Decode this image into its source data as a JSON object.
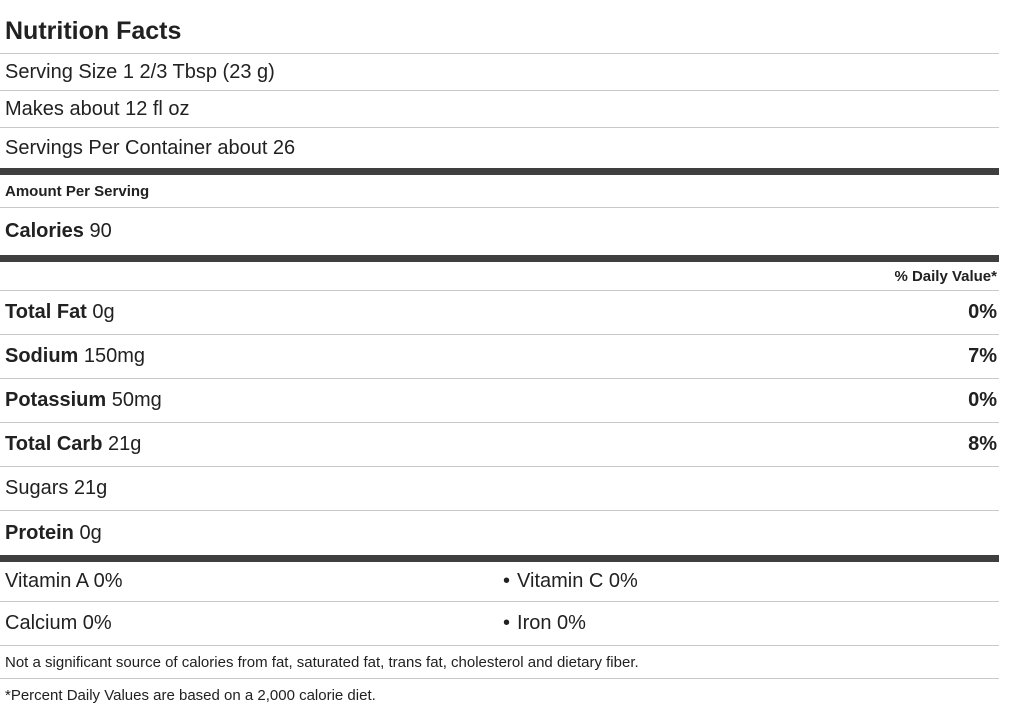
{
  "label": {
    "title": "Nutrition Facts",
    "serving_rows": [
      "Serving Size 1 2/3 Tbsp (23 g)",
      "Makes about 12 fl oz",
      "Servings Per Container about 26"
    ],
    "amount_per_serving": "Amount Per Serving",
    "calories": {
      "name": "Calories",
      "value": " 90"
    },
    "daily_value_header": "% Daily Value*",
    "nutrients": [
      {
        "name": "Total Fat",
        "amount": " 0g",
        "daily_value": "0%"
      },
      {
        "name": "Sodium",
        "amount": " 150mg",
        "daily_value": "7%"
      },
      {
        "name": "Potassium",
        "amount": " 50mg",
        "daily_value": "0%"
      },
      {
        "name": "Total Carb",
        "amount": " 21g",
        "daily_value": "8%"
      },
      {
        "name": "Sugars",
        "amount": " 21g",
        "daily_value": ""
      },
      {
        "name": "Protein",
        "amount": " 0g",
        "daily_value": ""
      }
    ],
    "bullet": "•",
    "micronutrient_rows": [
      {
        "left": "Vitamin A 0%",
        "right": "Vitamin C 0%"
      },
      {
        "left": "Calcium 0%",
        "right": "Iron 0%"
      }
    ],
    "note": "Not a significant source of calories from fat, saturated fat, trans fat, cholesterol and dietary fiber.",
    "footnote": "*Percent Daily Values are based on a 2,000 calorie diet.",
    "colors": {
      "text": "#212121",
      "thin_rule": "#c9c9c9",
      "thick_bar": "#3f3f3f",
      "background": "#ffffff"
    }
  }
}
